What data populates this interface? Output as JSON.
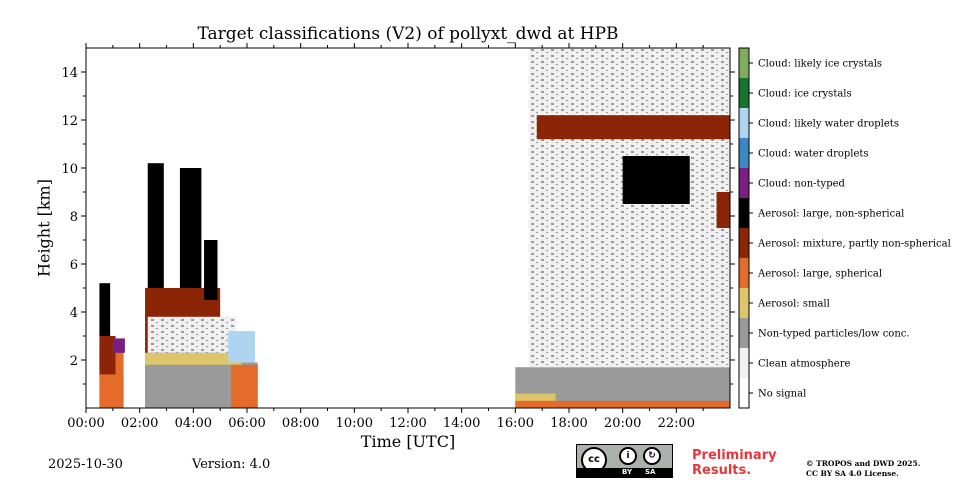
{
  "chart_data": {
    "type": "heatmap",
    "title": "Target classifications (V2) of pollyxt_dwd at HPB",
    "xlabel": "Time [UTC]",
    "ylabel": "Height [km]",
    "xlim": [
      0,
      24
    ],
    "ylim": [
      0,
      15
    ],
    "x_ticks": [
      0,
      2,
      4,
      6,
      8,
      10,
      12,
      14,
      16,
      18,
      20,
      22
    ],
    "x_tick_labels": [
      "00:00",
      "02:00",
      "04:00",
      "06:00",
      "08:00",
      "10:00",
      "12:00",
      "14:00",
      "16:00",
      "18:00",
      "20:00",
      "22:00"
    ],
    "y_ticks": [
      2,
      4,
      6,
      8,
      10,
      12,
      14
    ],
    "y_tick_labels": [
      "2",
      "4",
      "6",
      "8",
      "10",
      "12",
      "14"
    ],
    "classes": [
      {
        "label": "No signal",
        "color": "#ffffff"
      },
      {
        "label": "Clean atmosphere",
        "color": "#f0f0f0"
      },
      {
        "label": "Non-typed particles/low conc.",
        "color": "#9a9a9a"
      },
      {
        "label": "Aerosol: small",
        "color": "#dcc56a"
      },
      {
        "label": "Aerosol: large, spherical",
        "color": "#e56b2b"
      },
      {
        "label": "Aerosol: mixture, partly non-spherical",
        "color": "#8b2505"
      },
      {
        "label": "Aerosol: large, non-spherical",
        "color": "#000000"
      },
      {
        "label": "Cloud: non-typed",
        "color": "#7a1f85"
      },
      {
        "label": "Cloud: water droplets",
        "color": "#3d87c4"
      },
      {
        "label": "Cloud: likely water droplets",
        "color": "#aed4f0"
      },
      {
        "label": "Cloud: ice crystals",
        "color": "#17752e"
      },
      {
        "label": "Cloud: likely ice crystals",
        "color": "#80ad5d"
      }
    ],
    "regions": [
      {
        "class": "Non-typed particles/low conc.",
        "t": [
          0.5,
          1.4
        ],
        "h": [
          0.0,
          1.4
        ]
      },
      {
        "class": "Aerosol: large, spherical",
        "t": [
          0.5,
          1.4
        ],
        "h": [
          0.0,
          2.5
        ]
      },
      {
        "class": "Aerosol: mixture, partly non-spherical",
        "t": [
          0.5,
          1.1
        ],
        "h": [
          1.4,
          3.0
        ]
      },
      {
        "class": "Aerosol: large, non-spherical",
        "t": [
          0.5,
          0.9
        ],
        "h": [
          3.0,
          5.2
        ]
      },
      {
        "class": "Cloud: non-typed",
        "t": [
          1.0,
          1.45
        ],
        "h": [
          2.3,
          2.9
        ]
      },
      {
        "class": "Non-typed particles/low conc.",
        "t": [
          2.2,
          6.4
        ],
        "h": [
          0.0,
          1.9
        ]
      },
      {
        "class": "Aerosol: small",
        "t": [
          2.2,
          5.8
        ],
        "h": [
          1.8,
          2.3
        ]
      },
      {
        "class": "Aerosol: large, spherical",
        "t": [
          5.4,
          6.4
        ],
        "h": [
          0.0,
          1.8
        ]
      },
      {
        "class": "Aerosol: mixture, partly non-spherical",
        "t": [
          2.2,
          5.0
        ],
        "h": [
          2.3,
          5.0
        ]
      },
      {
        "class": "Clean atmosphere",
        "t": [
          2.3,
          5.6
        ],
        "h": [
          2.3,
          3.8
        ]
      },
      {
        "class": "Aerosol: large, non-spherical",
        "t": [
          2.3,
          2.9
        ],
        "h": [
          5.0,
          10.2
        ]
      },
      {
        "class": "Aerosol: large, non-spherical",
        "t": [
          3.5,
          4.3
        ],
        "h": [
          5.0,
          10.0
        ]
      },
      {
        "class": "Aerosol: large, non-spherical",
        "t": [
          4.4,
          4.9
        ],
        "h": [
          4.5,
          7.0
        ]
      },
      {
        "class": "Cloud: likely water droplets",
        "t": [
          5.3,
          6.3
        ],
        "h": [
          1.9,
          3.2
        ]
      },
      {
        "class": "Non-typed particles/low conc.",
        "t": [
          16.0,
          24.0
        ],
        "h": [
          0.0,
          1.7
        ]
      },
      {
        "class": "Aerosol: small",
        "t": [
          16.0,
          17.5
        ],
        "h": [
          0.1,
          0.6
        ]
      },
      {
        "class": "Aerosol: large, spherical",
        "t": [
          16.0,
          24.0
        ],
        "h": [
          0.0,
          0.3
        ]
      },
      {
        "class": "Clean atmosphere",
        "t": [
          16.5,
          24.0
        ],
        "h": [
          1.7,
          15.0
        ]
      },
      {
        "class": "Aerosol: mixture, partly non-spherical",
        "t": [
          16.8,
          24.0
        ],
        "h": [
          11.2,
          12.2
        ]
      },
      {
        "class": "Aerosol: large, non-spherical",
        "t": [
          20.0,
          22.5
        ],
        "h": [
          8.5,
          10.5
        ]
      },
      {
        "class": "Aerosol: mixture, partly non-spherical",
        "t": [
          23.5,
          24.0
        ],
        "h": [
          7.5,
          9.0
        ]
      }
    ]
  },
  "footer": {
    "date": "2025-10-30",
    "version": "Version: 4.0",
    "preliminary_line1": "Preliminary",
    "preliminary_line2": "Results.",
    "copyright_line1": "© TROPOS and DWD 2025.",
    "copyright_line2": "CC BY SA 4.0 License.",
    "cc_main": "cc",
    "cc_by": "BY",
    "cc_sa": "SA"
  }
}
